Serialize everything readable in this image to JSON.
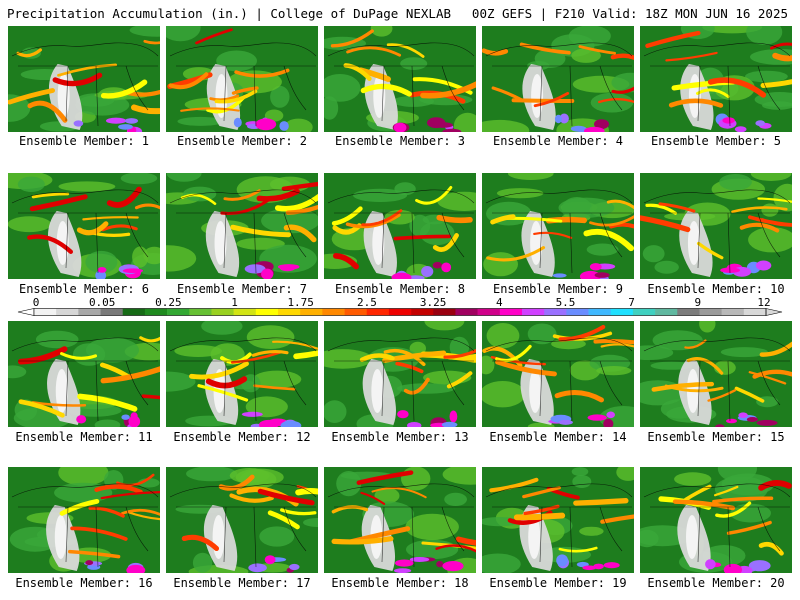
{
  "header": {
    "title": "Precipitation Accumulation (in.) | College of DuPage NEXLAB",
    "run_info": "00Z GEFS | F210 Valid: 18Z MON JUN 16 2025"
  },
  "panels": [
    {
      "label": "Ensemble Member: 1"
    },
    {
      "label": "Ensemble Member: 2"
    },
    {
      "label": "Ensemble Member: 3"
    },
    {
      "label": "Ensemble Member: 4"
    },
    {
      "label": "Ensemble Member: 5"
    },
    {
      "label": "Ensemble Member: 6"
    },
    {
      "label": "Ensemble Member: 7"
    },
    {
      "label": "Ensemble Member: 8"
    },
    {
      "label": "Ensemble Member: 9"
    },
    {
      "label": "Ensemble Member: 10"
    },
    {
      "label": "Ensemble Member: 11"
    },
    {
      "label": "Ensemble Member: 12"
    },
    {
      "label": "Ensemble Member: 13"
    },
    {
      "label": "Ensemble Member: 14"
    },
    {
      "label": "Ensemble Member: 15"
    },
    {
      "label": "Ensemble Member: 16"
    },
    {
      "label": "Ensemble Member: 17"
    },
    {
      "label": "Ensemble Member: 18"
    },
    {
      "label": "Ensemble Member: 19"
    },
    {
      "label": "Ensemble Member: 20"
    }
  ],
  "colorbar": {
    "tick_labels": [
      "0",
      "0.05",
      "0.25",
      "1",
      "1.75",
      "2.5",
      "3.25",
      "4",
      "5.5",
      "7",
      "9",
      "12"
    ],
    "colors": [
      "#f2f2f2",
      "#d6d6d6",
      "#a8a8a8",
      "#7a7a7a",
      "#166b16",
      "#1f8a1f",
      "#33a833",
      "#66c033",
      "#99d020",
      "#d2e414",
      "#ffff00",
      "#ffd800",
      "#ffb000",
      "#ff8800",
      "#ff5a00",
      "#ff2600",
      "#ee0000",
      "#c40000",
      "#9a0010",
      "#a00060",
      "#d0008a",
      "#ff00c8",
      "#d040ff",
      "#9a70ff",
      "#6a8cff",
      "#40b8ff",
      "#20e0ff",
      "#40d0c0",
      "#60b8a0",
      "#7c7c7c",
      "#9a9a9a",
      "#b8b8b8",
      "#d8d8d8"
    ]
  }
}
